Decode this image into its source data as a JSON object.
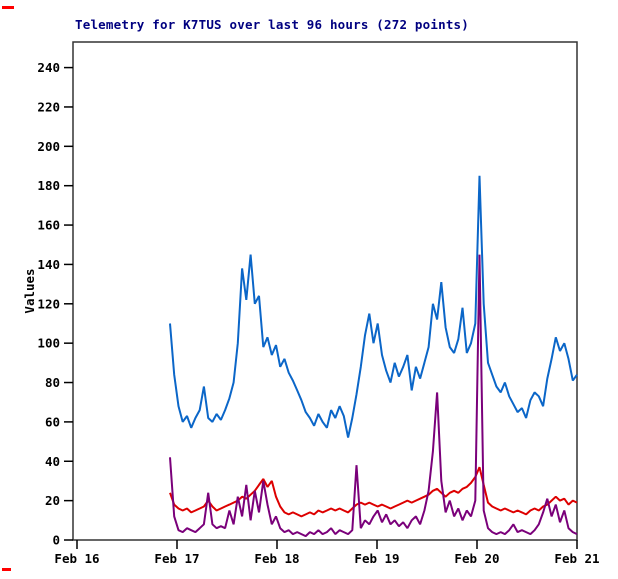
{
  "page": {
    "background": "#ffffff",
    "artifact_color": "#ff0000"
  },
  "chart_data": {
    "type": "line",
    "title": "Telemetry for K7TUS over last 96 hours (272 points)",
    "title_color": "#000080",
    "xlabel": "",
    "ylabel": "Values",
    "x_tick_labels": [
      "Feb 16",
      "Feb 17",
      "Feb 18",
      "Feb 19",
      "Feb 20",
      "Feb 21"
    ],
    "x_tick_days": [
      0,
      1,
      2,
      3,
      4,
      5
    ],
    "y_ticks": [
      0,
      20,
      40,
      60,
      80,
      100,
      120,
      140,
      160,
      180,
      200,
      220,
      240
    ],
    "ylim": [
      0,
      253
    ],
    "xlim_days": [
      0,
      5
    ],
    "grid": false,
    "legend": "none",
    "data_start_day": 0.93,
    "data_end_day": 5.0,
    "frame_color": "#333333",
    "series": [
      {
        "name": "series-blue",
        "color": "#0b66c8",
        "values": [
          110,
          84,
          68,
          60,
          63,
          57,
          62,
          66,
          78,
          62,
          60,
          64,
          61,
          66,
          72,
          80,
          100,
          138,
          122,
          145,
          120,
          124,
          98,
          103,
          94,
          99,
          88,
          92,
          85,
          81,
          76,
          71,
          65,
          62,
          58,
          64,
          60,
          57,
          66,
          62,
          68,
          63,
          52,
          62,
          74,
          88,
          104,
          115,
          100,
          110,
          94,
          86,
          80,
          90,
          83,
          88,
          94,
          76,
          88,
          82,
          90,
          98,
          120,
          112,
          131,
          108,
          98,
          95,
          102,
          118,
          95,
          100,
          110,
          185,
          120,
          90,
          84,
          78,
          75,
          80,
          73,
          69,
          65,
          67,
          62,
          71,
          75,
          73,
          68,
          82,
          92,
          103,
          96,
          100,
          92,
          81,
          84
        ]
      },
      {
        "name": "series-red",
        "color": "#dd0000",
        "values": [
          24,
          18,
          16,
          15,
          16,
          14,
          15,
          16,
          17,
          20,
          17,
          15,
          16,
          17,
          18,
          19,
          20,
          22,
          21,
          23,
          25,
          28,
          31,
          27,
          30,
          22,
          17,
          14,
          13,
          14,
          13,
          12,
          13,
          14,
          13,
          15,
          14,
          15,
          16,
          15,
          16,
          15,
          14,
          16,
          18,
          19,
          18,
          19,
          18,
          17,
          18,
          17,
          16,
          17,
          18,
          19,
          20,
          19,
          20,
          21,
          22,
          23,
          25,
          26,
          24,
          22,
          24,
          25,
          24,
          26,
          27,
          29,
          32,
          37,
          28,
          19,
          17,
          16,
          15,
          16,
          15,
          14,
          15,
          14,
          13,
          15,
          16,
          15,
          17,
          18,
          20,
          22,
          20,
          21,
          18,
          20,
          19
        ]
      },
      {
        "name": "series-purple",
        "color": "#7a007a",
        "values": [
          42,
          12,
          5,
          4,
          6,
          5,
          4,
          6,
          8,
          24,
          8,
          6,
          7,
          6,
          15,
          8,
          22,
          12,
          28,
          10,
          25,
          14,
          30,
          18,
          8,
          12,
          6,
          4,
          5,
          3,
          4,
          3,
          2,
          4,
          3,
          5,
          3,
          4,
          6,
          3,
          5,
          4,
          3,
          5,
          38,
          6,
          10,
          8,
          12,
          15,
          9,
          13,
          8,
          10,
          7,
          9,
          6,
          10,
          12,
          8,
          15,
          25,
          45,
          75,
          30,
          14,
          20,
          12,
          16,
          10,
          15,
          12,
          20,
          145,
          15,
          6,
          4,
          3,
          4,
          3,
          5,
          8,
          4,
          5,
          4,
          3,
          5,
          8,
          14,
          21,
          12,
          18,
          9,
          15,
          6,
          4,
          3
        ]
      }
    ]
  }
}
